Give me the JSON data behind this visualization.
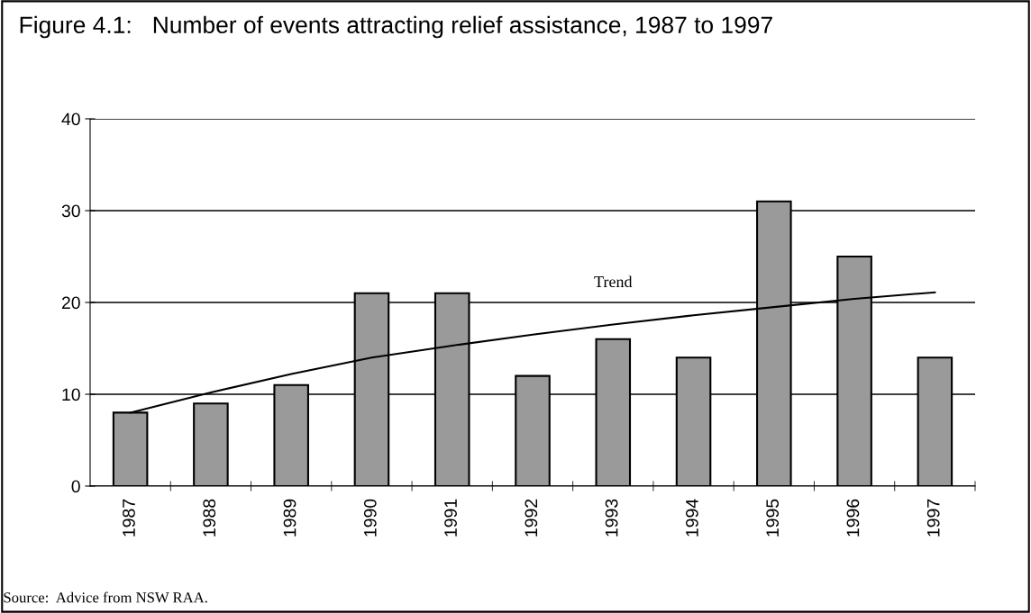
{
  "chart_data": {
    "type": "bar",
    "title": "Figure 4.1:   Number of events attracting relief assistance, 1987 to 1997",
    "categories": [
      "1987",
      "1988",
      "1989",
      "1990",
      "1991",
      "1992",
      "1993",
      "1994",
      "1995",
      "1996",
      "1997"
    ],
    "series": [
      {
        "color": "#9a9a9a",
        "values": [
          8,
          9,
          11,
          21,
          21,
          12,
          16,
          14,
          31,
          25,
          14
        ]
      },
      {
        "type": "line",
        "name": "Trend",
        "color": "#000000",
        "values": [
          8.0,
          10.2,
          12.2,
          14.0,
          15.3,
          16.5,
          17.6,
          18.6,
          19.5,
          20.4,
          21.1
        ]
      }
    ],
    "ylim": [
      0,
      40
    ],
    "yticks": [
      0,
      10,
      20,
      30,
      40
    ],
    "grid": "y",
    "annotations": [
      "Source:  Advice from NSW RAA."
    ]
  }
}
